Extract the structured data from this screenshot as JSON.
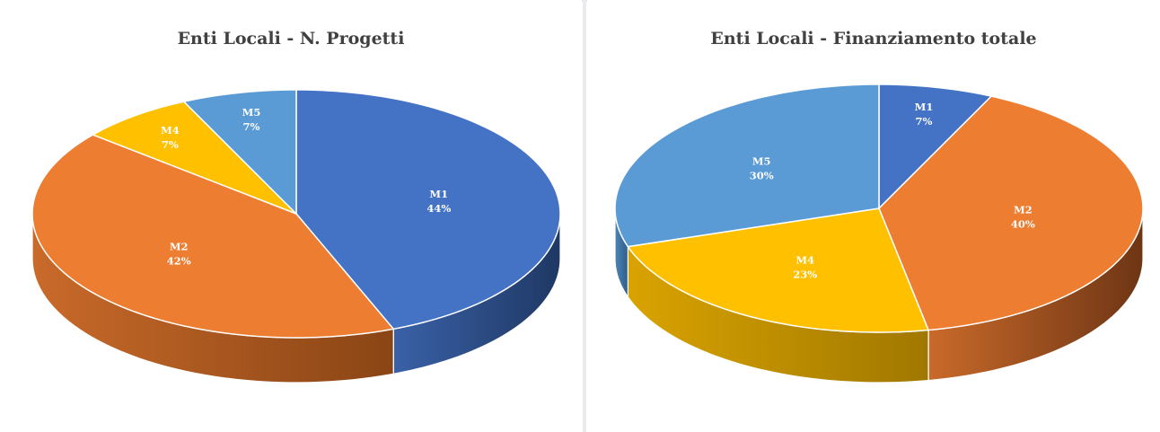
{
  "chart_data": [
    {
      "type": "pie",
      "title": "Enti Locali - N. Progetti",
      "slices": [
        {
          "label": "M1",
          "value": 44,
          "display": "44%",
          "color": "#4472C4",
          "side": "#1F3864"
        },
        {
          "label": "M2",
          "value": 42,
          "display": "42%",
          "color": "#ED7D31",
          "side": "#8A4515"
        },
        {
          "label": "M4",
          "value": 7,
          "display": "7%",
          "color": "#FFC000",
          "side": "#9C7600"
        },
        {
          "label": "M5",
          "value": 7,
          "display": "7%",
          "color": "#5B9BD5",
          "side": "#2E5E8C"
        }
      ]
    },
    {
      "type": "pie",
      "title": "Enti Locali - Finanziamento totale",
      "slices": [
        {
          "label": "M1",
          "value": 7,
          "display": "7%",
          "color": "#4472C4",
          "side": "#1F3864"
        },
        {
          "label": "M2",
          "value": 40,
          "display": "40%",
          "color": "#ED7D31",
          "side": "#6E3514"
        },
        {
          "label": "M4",
          "value": 23,
          "display": "23%",
          "color": "#FFC000",
          "side": "#A07800"
        },
        {
          "label": "M5",
          "value": 30,
          "display": "30%",
          "color": "#5B9BD5",
          "side": "#2E5E8C"
        }
      ]
    }
  ]
}
